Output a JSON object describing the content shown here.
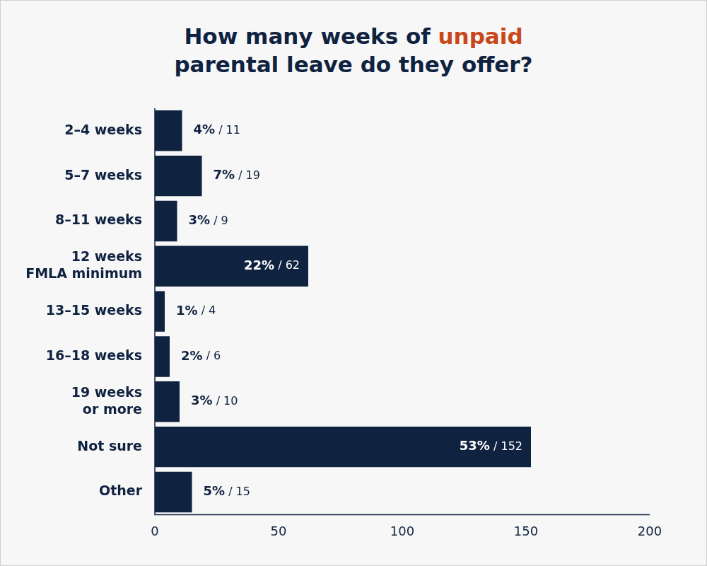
{
  "chart_data": {
    "type": "bar",
    "orientation": "horizontal",
    "title": "How many weeks of unpaid parental leave do they offer?",
    "categories": [
      "2–4 weeks",
      "5–7 weeks",
      "8–11 weeks",
      "12 weeks\nFMLA minimum",
      "13–15 weeks",
      "16–18 weeks",
      "19 weeks\nor more",
      "Not sure",
      "Other"
    ],
    "values": [
      11,
      19,
      9,
      62,
      4,
      6,
      10,
      152,
      15
    ],
    "value_labels": [
      "4% / 11",
      "7% / 19",
      "3% / 9",
      "22% / 62",
      "1% / 4",
      "2% / 6",
      "3% / 10",
      "53% / 152",
      "5% / 15"
    ],
    "data_labels": true,
    "color": "#0f2240",
    "xlim": [
      0,
      200
    ],
    "xticks": [
      0,
      50,
      100,
      150,
      200
    ],
    "grid": false
  }
}
